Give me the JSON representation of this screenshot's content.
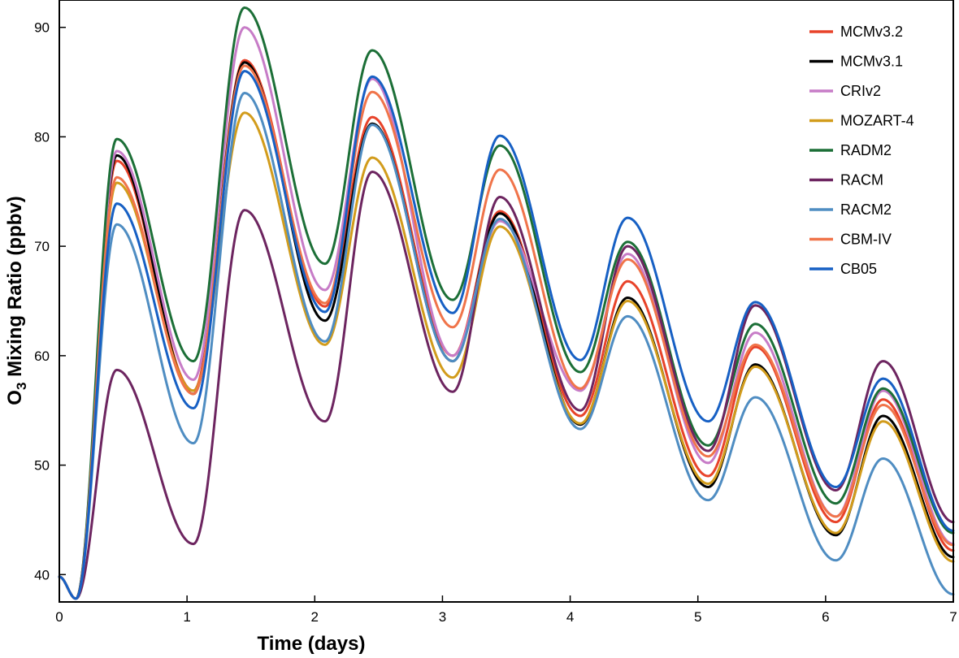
{
  "chart_data": {
    "type": "line",
    "xlabel": "Time (days)",
    "ylabel_main": "O",
    "ylabel_sub": "3",
    "ylabel_rest": " Mixing Ratio (ppbv)",
    "xlim": [
      0,
      7
    ],
    "ylim": [
      37.5,
      92.5
    ],
    "xticks": [
      0,
      1,
      2,
      3,
      4,
      5,
      6,
      7
    ],
    "yticks": [
      40,
      50,
      60,
      70,
      80,
      90
    ],
    "grid": false,
    "legend_position": "top-right",
    "series": [
      {
        "name": "MCMv3.2",
        "color": "#e8432a",
        "points": [
          [
            0,
            39.8
          ],
          [
            0.13,
            37.8
          ],
          [
            0.45,
            77.8
          ],
          [
            1.05,
            56.8
          ],
          [
            1.45,
            87.0
          ],
          [
            2.08,
            64.5
          ],
          [
            2.45,
            81.8
          ],
          [
            3.08,
            60.0
          ],
          [
            3.45,
            73.2
          ],
          [
            4.08,
            54.5
          ],
          [
            4.45,
            66.8
          ],
          [
            5.08,
            49.0
          ],
          [
            5.45,
            60.8
          ],
          [
            6.08,
            44.8
          ],
          [
            6.45,
            56.0
          ],
          [
            7.0,
            42.2
          ]
        ]
      },
      {
        "name": "MCMv3.1",
        "color": "#000000",
        "points": [
          [
            0,
            39.8
          ],
          [
            0.13,
            37.8
          ],
          [
            0.45,
            78.3
          ],
          [
            1.05,
            56.5
          ],
          [
            1.45,
            86.8
          ],
          [
            2.08,
            63.2
          ],
          [
            2.45,
            81.2
          ],
          [
            3.08,
            59.5
          ],
          [
            3.45,
            73.0
          ],
          [
            4.08,
            53.7
          ],
          [
            4.45,
            65.3
          ],
          [
            5.08,
            48.0
          ],
          [
            5.45,
            59.2
          ],
          [
            6.08,
            43.6
          ],
          [
            6.45,
            54.5
          ],
          [
            7.0,
            41.6
          ]
        ]
      },
      {
        "name": "CRIv2",
        "color": "#c77cc7",
        "points": [
          [
            0,
            39.8
          ],
          [
            0.13,
            37.8
          ],
          [
            0.45,
            78.7
          ],
          [
            1.05,
            57.8
          ],
          [
            1.45,
            90.0
          ],
          [
            2.08,
            66.0
          ],
          [
            2.45,
            85.3
          ],
          [
            3.08,
            60.0
          ],
          [
            3.45,
            72.3
          ],
          [
            4.08,
            56.8
          ],
          [
            4.45,
            69.3
          ],
          [
            5.08,
            50.2
          ],
          [
            5.45,
            62.1
          ],
          [
            6.08,
            45.3
          ],
          [
            6.45,
            56.8
          ],
          [
            7.0,
            42.8
          ]
        ]
      },
      {
        "name": "MOZART-4",
        "color": "#d29c1c",
        "points": [
          [
            0,
            39.8
          ],
          [
            0.13,
            37.8
          ],
          [
            0.45,
            75.8
          ],
          [
            1.05,
            56.8
          ],
          [
            1.45,
            82.2
          ],
          [
            2.08,
            61.0
          ],
          [
            2.45,
            78.1
          ],
          [
            3.08,
            58.0
          ],
          [
            3.45,
            71.8
          ],
          [
            4.08,
            53.8
          ],
          [
            4.45,
            65.0
          ],
          [
            5.08,
            48.3
          ],
          [
            5.45,
            59.0
          ],
          [
            6.08,
            43.8
          ],
          [
            6.45,
            54.0
          ],
          [
            7.0,
            41.2
          ]
        ]
      },
      {
        "name": "RADM2",
        "color": "#1c6f37",
        "points": [
          [
            0,
            39.8
          ],
          [
            0.13,
            37.8
          ],
          [
            0.45,
            79.8
          ],
          [
            1.05,
            59.5
          ],
          [
            1.45,
            91.8
          ],
          [
            2.08,
            68.4
          ],
          [
            2.45,
            87.9
          ],
          [
            3.08,
            65.1
          ],
          [
            3.45,
            79.2
          ],
          [
            4.08,
            58.5
          ],
          [
            4.45,
            70.4
          ],
          [
            5.08,
            51.8
          ],
          [
            5.45,
            62.9
          ],
          [
            6.08,
            46.5
          ],
          [
            6.45,
            57.0
          ],
          [
            7.0,
            43.8
          ]
        ]
      },
      {
        "name": "RACM",
        "color": "#6d2560",
        "points": [
          [
            0,
            39.8
          ],
          [
            0.13,
            37.8
          ],
          [
            0.45,
            58.7
          ],
          [
            1.05,
            42.8
          ],
          [
            1.45,
            73.3
          ],
          [
            2.08,
            54.0
          ],
          [
            2.45,
            76.8
          ],
          [
            3.08,
            56.7
          ],
          [
            3.45,
            74.5
          ],
          [
            4.08,
            55.0
          ],
          [
            4.45,
            70.0
          ],
          [
            5.08,
            51.3
          ],
          [
            5.45,
            64.6
          ],
          [
            6.08,
            47.7
          ],
          [
            6.45,
            59.5
          ],
          [
            7.0,
            44.8
          ]
        ]
      },
      {
        "name": "RACM2",
        "color": "#4f8dc2",
        "points": [
          [
            0,
            39.8
          ],
          [
            0.13,
            37.8
          ],
          [
            0.45,
            72.0
          ],
          [
            1.05,
            52.0
          ],
          [
            1.45,
            84.0
          ],
          [
            2.08,
            61.3
          ],
          [
            2.45,
            81.1
          ],
          [
            3.08,
            59.5
          ],
          [
            3.45,
            72.5
          ],
          [
            4.08,
            53.3
          ],
          [
            4.45,
            63.6
          ],
          [
            5.08,
            46.8
          ],
          [
            5.45,
            56.2
          ],
          [
            6.08,
            41.3
          ],
          [
            6.45,
            50.6
          ],
          [
            7.0,
            38.2
          ]
        ]
      },
      {
        "name": "CBM-IV",
        "color": "#f0744a",
        "points": [
          [
            0,
            39.8
          ],
          [
            0.13,
            37.8
          ],
          [
            0.45,
            76.3
          ],
          [
            1.05,
            56.5
          ],
          [
            1.45,
            86.5
          ],
          [
            2.08,
            64.8
          ],
          [
            2.45,
            84.1
          ],
          [
            3.08,
            62.6
          ],
          [
            3.45,
            77.0
          ],
          [
            4.08,
            57.0
          ],
          [
            4.45,
            68.8
          ],
          [
            5.08,
            50.8
          ],
          [
            5.45,
            61.0
          ],
          [
            6.08,
            45.3
          ],
          [
            6.45,
            55.5
          ],
          [
            7.0,
            42.7
          ]
        ]
      },
      {
        "name": "CB05",
        "color": "#1760c4",
        "points": [
          [
            0,
            39.8
          ],
          [
            0.13,
            37.8
          ],
          [
            0.45,
            73.9
          ],
          [
            1.05,
            55.2
          ],
          [
            1.45,
            86.0
          ],
          [
            2.08,
            64.0
          ],
          [
            2.45,
            85.5
          ],
          [
            3.08,
            63.9
          ],
          [
            3.45,
            80.1
          ],
          [
            4.08,
            59.6
          ],
          [
            4.45,
            72.6
          ],
          [
            5.08,
            54.0
          ],
          [
            5.45,
            64.9
          ],
          [
            6.08,
            48.0
          ],
          [
            6.45,
            57.9
          ],
          [
            7.0,
            44.0
          ]
        ]
      }
    ]
  }
}
